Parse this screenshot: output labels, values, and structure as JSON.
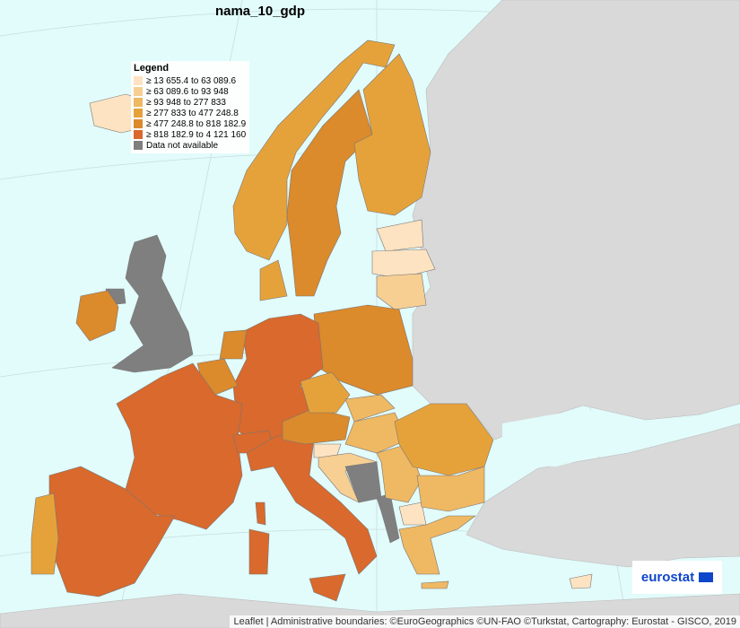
{
  "title": "nama_10_gdp",
  "legend": {
    "title": "Legend",
    "items": [
      {
        "label": "≥ 13 655.4 to 63 089.6",
        "color": "#fde3c1"
      },
      {
        "label": "≥ 63 089.6 to 93 948",
        "color": "#f7cf93"
      },
      {
        "label": "≥ 93 948 to 277 833",
        "color": "#efb862"
      },
      {
        "label": "≥ 277 833 to 477 248.8",
        "color": "#e6a23a"
      },
      {
        "label": "≥ 477 248.8 to 818 182.9",
        "color": "#db8a2c"
      },
      {
        "label": "≥ 818 182.9 to 4 121 160",
        "color": "#d9692c"
      },
      {
        "label": "Data not available",
        "color": "#7f7f7f"
      }
    ]
  },
  "logo": "eurostat",
  "attribution": "Leaflet | Administrative boundaries: ©EuroGeographics ©UN-FAO ©Turkstat, Cartography: Eurostat - GISCO, 2019"
}
